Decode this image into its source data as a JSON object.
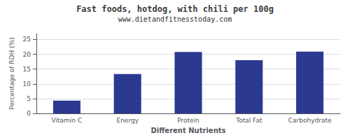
{
  "chart_data": {
    "type": "bar",
    "title": "Fast foods, hotdog, with chili per 100g",
    "subtitle": "www.dietandfitnesstoday.com",
    "xlabel": "Different Nutrients",
    "ylabel": "Percentage of RDH (%)",
    "categories": [
      "Vitamin C",
      "Energy",
      "Protein",
      "Total Fat",
      "Carbohydrate"
    ],
    "values": [
      4.3,
      13.3,
      20.8,
      18.0,
      20.9
    ],
    "color": "#2b3990",
    "ylim": [
      0,
      27
    ],
    "yticks": [
      0,
      5,
      10,
      15,
      20,
      25
    ],
    "grid": true
  }
}
